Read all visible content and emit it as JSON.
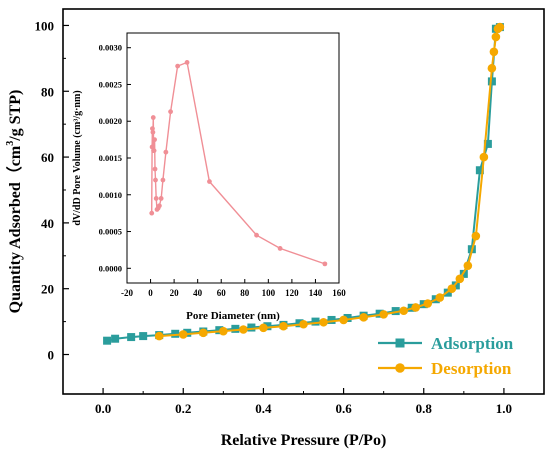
{
  "main": {
    "xlabel": "Relative Pressure (P/Po)",
    "ylabel_main": "Quantity Adsorbed（cm",
    "ylabel_sup": "3",
    "ylabel_end": "/g STP)",
    "x_ticks": [
      "0.0",
      "0.2",
      "0.4",
      "0.6",
      "0.8",
      "1.0"
    ],
    "y_ticks": [
      "0",
      "20",
      "40",
      "60",
      "80",
      "100"
    ]
  },
  "legend": {
    "adsorption": "Adsorption",
    "desorption": "Desorption"
  },
  "inset": {
    "xlabel": "Pore  Diameter (nm)",
    "ylabel": "dV/dD Pore Volume (cm³/g·nm)",
    "x_ticks": [
      "-20",
      "0",
      "20",
      "40",
      "60",
      "80",
      "100",
      "120",
      "140",
      "160"
    ],
    "y_ticks": [
      "0.0000",
      "0.0005",
      "0.0010",
      "0.0015",
      "0.0020",
      "0.0025",
      "0.0030"
    ]
  },
  "chart_data": [
    {
      "type": "line",
      "xlabel": "Relative Pressure (P/Po)",
      "ylabel": "Quantity Adsorbed（cm3/g STP)",
      "xlim": [
        -0.1,
        1.1
      ],
      "ylim": [
        -12,
        105
      ],
      "legend_position": "bottom-right",
      "series": [
        {
          "name": "Adsorption",
          "color": "#2a9d9c",
          "marker": "square",
          "x": [
            0.01,
            0.03,
            0.07,
            0.1,
            0.14,
            0.18,
            0.21,
            0.25,
            0.29,
            0.33,
            0.37,
            0.41,
            0.45,
            0.49,
            0.53,
            0.57,
            0.61,
            0.65,
            0.69,
            0.73,
            0.77,
            0.8,
            0.83,
            0.86,
            0.88,
            0.9,
            0.92,
            0.94,
            0.96,
            0.97,
            0.98,
            0.99
          ],
          "y": [
            4.2,
            4.8,
            5.3,
            5.6,
            5.9,
            6.3,
            6.6,
            7.0,
            7.4,
            7.8,
            8.2,
            8.6,
            9.0,
            9.5,
            10.0,
            10.5,
            11.1,
            11.8,
            12.4,
            13.2,
            14.2,
            15.3,
            16.8,
            18.8,
            21.0,
            24.5,
            32.0,
            56.0,
            64.0,
            83.0,
            99.0,
            99.5
          ]
        },
        {
          "name": "Desorption",
          "color": "#f5a800",
          "marker": "circle",
          "x": [
            0.14,
            0.2,
            0.25,
            0.3,
            0.35,
            0.4,
            0.45,
            0.5,
            0.55,
            0.6,
            0.65,
            0.7,
            0.75,
            0.78,
            0.81,
            0.84,
            0.87,
            0.89,
            0.91,
            0.93,
            0.95,
            0.97,
            0.975,
            0.98,
            0.985,
            0.99
          ],
          "y": [
            5.6,
            6.1,
            6.6,
            7.1,
            7.6,
            8.1,
            8.6,
            9.2,
            9.8,
            10.5,
            11.3,
            12.2,
            13.3,
            14.3,
            15.5,
            17.3,
            20.0,
            23.0,
            27.0,
            36.0,
            60.0,
            87.0,
            92.0,
            96.5,
            99.0,
            99.5
          ]
        }
      ]
    },
    {
      "type": "line",
      "xlabel": "Pore  Diameter (nm)",
      "ylabel": "dV/dD Pore Volume (cm³/g·nm)",
      "xlim": [
        -20,
        160
      ],
      "ylim": [
        -0.0002,
        0.0032
      ],
      "series": [
        {
          "color": "#f08f96",
          "marker": "circle",
          "x": [
            1.0,
            1.3,
            1.6,
            2.0,
            2.3,
            2.6,
            3.0,
            3.4,
            3.8,
            4.2,
            4.8,
            5.5,
            6.5,
            7.5,
            9.0,
            10.5,
            13.0,
            17.0,
            23.0,
            31.0,
            50.0,
            90.0,
            110.0,
            148.0
          ],
          "y": [
            0.00075,
            0.00165,
            0.0019,
            0.00185,
            0.00205,
            0.0016,
            0.0016,
            0.00175,
            0.00135,
            0.0012,
            0.00095,
            0.0008,
            0.00082,
            0.00085,
            0.00095,
            0.0012,
            0.00158,
            0.00213,
            0.00275,
            0.0028,
            0.00118,
            0.00045,
            0.00027,
            6e-05
          ]
        }
      ]
    }
  ]
}
